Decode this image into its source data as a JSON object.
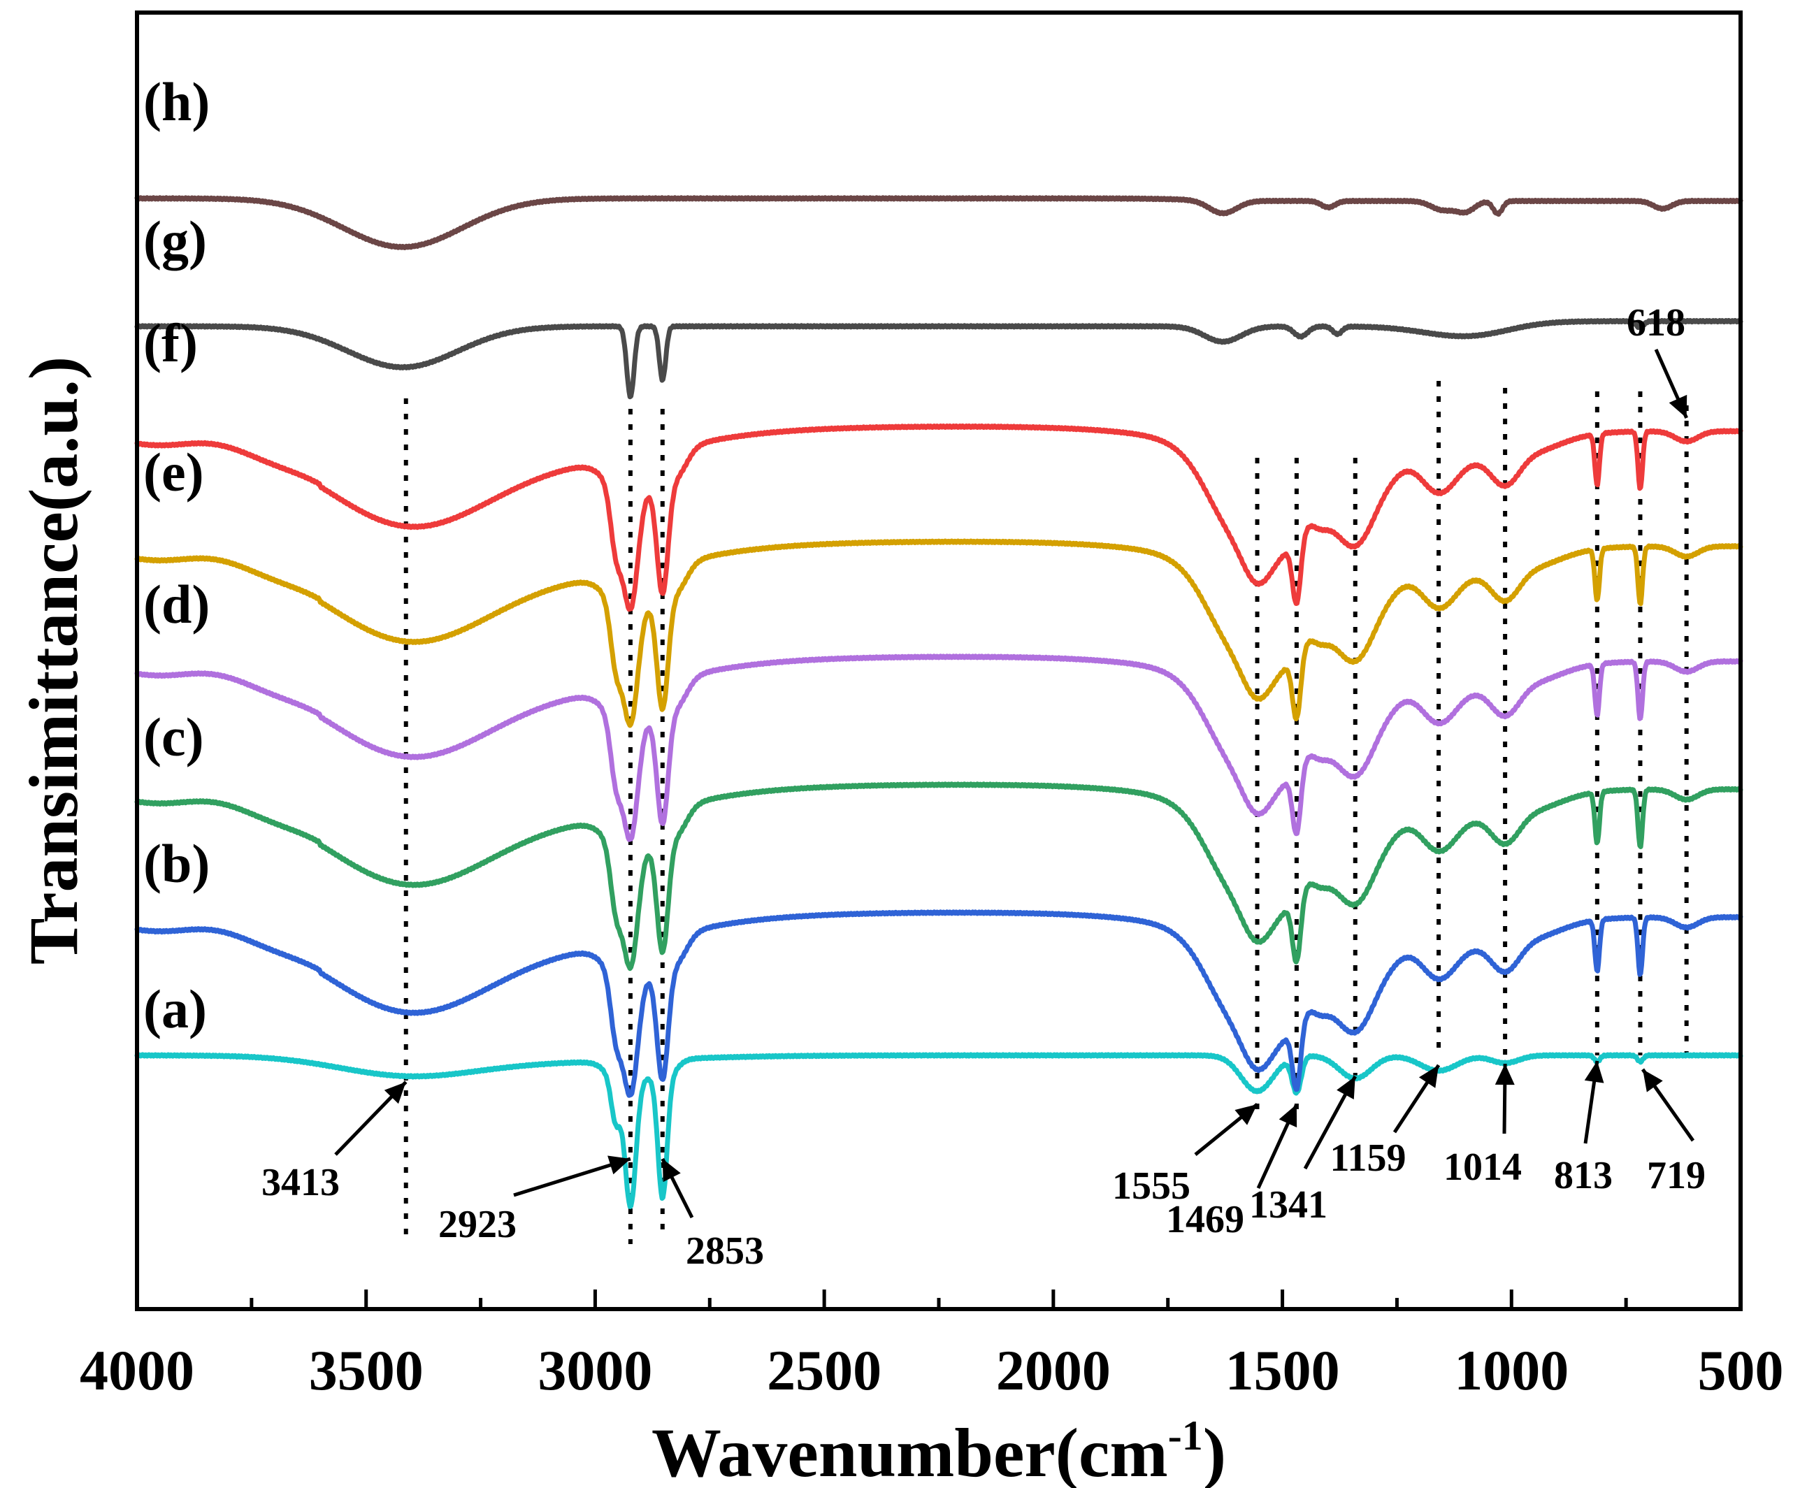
{
  "chart_data": {
    "type": "line",
    "title": "",
    "xlabel_main": "Wavenumber(cm",
    "xlabel_sup": "-1",
    "xlabel_close": ")",
    "ylabel": "Transimittance(a.u.)",
    "xlim": [
      4000,
      500
    ],
    "x_reversed": true,
    "x_ticks": [
      4000,
      3500,
      3000,
      2500,
      2000,
      1500,
      1000,
      500
    ],
    "y_ticks_shown": false,
    "dashed_peak_lines": [
      3413,
      2923,
      2853,
      1555,
      1469,
      1341,
      1159,
      1014,
      813,
      719,
      618
    ],
    "peak_labels": [
      {
        "text": "3413",
        "wavenumber": 3413
      },
      {
        "text": "2923",
        "wavenumber": 2923
      },
      {
        "text": "2853",
        "wavenumber": 2853
      },
      {
        "text": "1555",
        "wavenumber": 1555
      },
      {
        "text": "1469",
        "wavenumber": 1469
      },
      {
        "text": "1341",
        "wavenumber": 1341
      },
      {
        "text": "1159",
        "wavenumber": 1159
      },
      {
        "text": "1014",
        "wavenumber": 1014
      },
      {
        "text": "813",
        "wavenumber": 813
      },
      {
        "text": "719",
        "wavenumber": 719
      },
      {
        "text": "618",
        "wavenumber": 618
      }
    ],
    "series": [
      {
        "label": "(a)",
        "color": "#18C6C8",
        "baseline": 0.0,
        "style": "a"
      },
      {
        "label": "(b)",
        "color": "#2F63D6",
        "baseline": 1.0,
        "style": "full"
      },
      {
        "label": "(c)",
        "color": "#31A060",
        "baseline": 2.0,
        "style": "full"
      },
      {
        "label": "(d)",
        "color": "#B070DE",
        "baseline": 3.0,
        "style": "full"
      },
      {
        "label": "(e)",
        "color": "#D4A000",
        "baseline": 3.9,
        "style": "full"
      },
      {
        "label": "(f)",
        "color": "#EE3B3B",
        "baseline": 4.8,
        "style": "full"
      },
      {
        "label": "(g)",
        "color": "#4A4A4A",
        "baseline": 5.7,
        "style": "g"
      },
      {
        "label": "(h)",
        "color": "#6B4646",
        "baseline": 6.7,
        "style": "h"
      }
    ]
  }
}
